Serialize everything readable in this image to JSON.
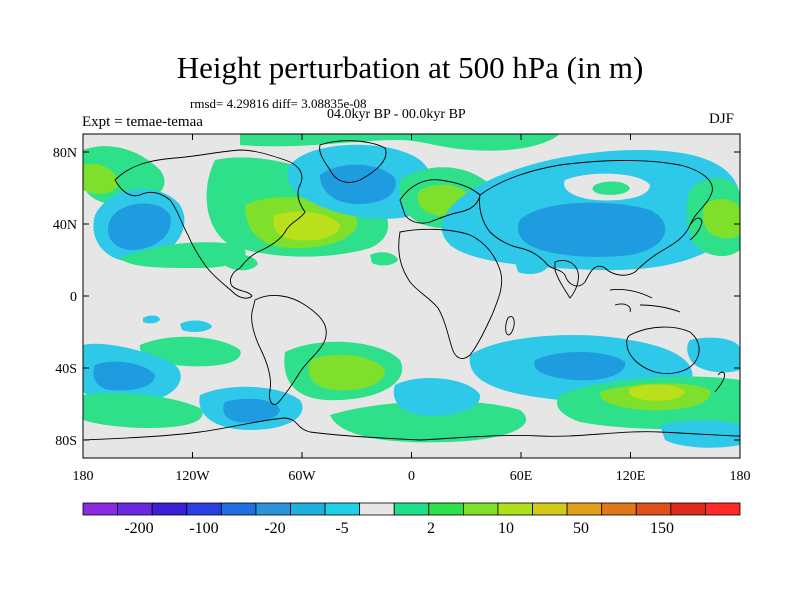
{
  "title": "Height perturbation at 500 hPa (in m)",
  "stats": "rmsd= 4.29816 diff= 3.08835e-08",
  "period": "04.0kyr BP - 00.0kyr BP",
  "experiment": "Expt = temae-temaa",
  "season": "DJF",
  "axes": {
    "lat_labels": [
      "80N",
      "40N",
      "0",
      "40S",
      "80S"
    ],
    "lat_values": [
      80,
      40,
      0,
      -40,
      -80
    ],
    "lon_labels": [
      "180",
      "120W",
      "60W",
      "0",
      "60E",
      "120E",
      "180"
    ],
    "lon_values": [
      -180,
      -120,
      -60,
      0,
      60,
      120,
      180
    ],
    "lat_range": [
      -90,
      90
    ],
    "lon_range": [
      -180,
      180
    ]
  },
  "colorbar": {
    "labels": [
      "-200",
      "-100",
      "-20",
      "-5",
      "2",
      "10",
      "50",
      "150"
    ],
    "colors": [
      "#8a2be2",
      "#6a2be0",
      "#3b1fd6",
      "#2a3fe0",
      "#1f6fe0",
      "#2a93dc",
      "#1fb0e0",
      "#1fd0e6",
      "#e6e6e6",
      "#1fe08a",
      "#2ee04a",
      "#7ee02a",
      "#b0e01a",
      "#d4c81a",
      "#e0a01a",
      "#e0781a",
      "#e0501a",
      "#e02a1a",
      "#ff2a2a"
    ]
  },
  "colors": {
    "neutral": "#e6e6e6",
    "lightblue": "#2ec8e8",
    "blue": "#1f9be0",
    "cyan": "#3dd6ea",
    "green": "#2ee08a",
    "lime": "#7ee02a",
    "yellowgreen": "#b9e01a",
    "coast": "#000000"
  }
}
